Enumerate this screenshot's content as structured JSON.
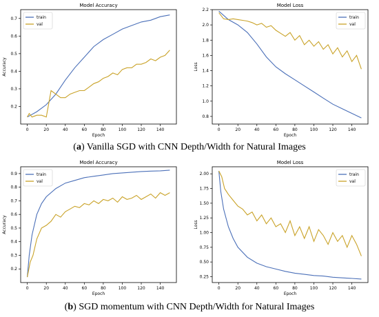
{
  "captions": [
    {
      "letter": "a",
      "text": " Vanilla SGD with CNN Depth/Width for Natural Images"
    },
    {
      "letter": "b",
      "text": " SGD momentum with CNN Depth/Width for Natural Images"
    }
  ],
  "colors": {
    "train": "#4a6fb8",
    "val": "#c9a227"
  },
  "chart_data": [
    {
      "type": "line",
      "title": "Model Accuracy",
      "xlabel": "Epoch",
      "ylabel": "Accuracy",
      "xlim": [
        -7,
        157
      ],
      "ylim": [
        0.1,
        0.75
      ],
      "xticks": [
        0,
        20,
        40,
        60,
        80,
        100,
        120,
        140
      ],
      "yticks": [
        0.2,
        0.3,
        0.4,
        0.5,
        0.6,
        0.7
      ],
      "legend": "top-left",
      "series": [
        {
          "name": "train",
          "x": [
            0,
            10,
            20,
            30,
            40,
            50,
            60,
            70,
            80,
            90,
            100,
            110,
            120,
            130,
            140,
            150
          ],
          "y": [
            0.14,
            0.17,
            0.21,
            0.27,
            0.35,
            0.42,
            0.48,
            0.54,
            0.58,
            0.61,
            0.64,
            0.66,
            0.68,
            0.69,
            0.71,
            0.72
          ]
        },
        {
          "name": "val",
          "x": [
            0,
            2,
            5,
            10,
            15,
            20,
            25,
            30,
            35,
            40,
            45,
            50,
            55,
            60,
            65,
            70,
            75,
            80,
            85,
            90,
            95,
            100,
            105,
            110,
            115,
            120,
            125,
            130,
            135,
            140,
            145,
            150
          ],
          "y": [
            0.14,
            0.16,
            0.14,
            0.15,
            0.15,
            0.14,
            0.29,
            0.27,
            0.25,
            0.25,
            0.27,
            0.28,
            0.29,
            0.29,
            0.31,
            0.33,
            0.34,
            0.36,
            0.37,
            0.39,
            0.38,
            0.41,
            0.42,
            0.42,
            0.44,
            0.44,
            0.45,
            0.47,
            0.46,
            0.48,
            0.49,
            0.52
          ]
        }
      ]
    },
    {
      "type": "line",
      "title": "Model Loss",
      "xlabel": "Epoch",
      "ylabel": "Loss",
      "xlim": [
        -7,
        157
      ],
      "ylim": [
        0.7,
        2.2
      ],
      "xticks": [
        0,
        20,
        40,
        60,
        80,
        100,
        120,
        140
      ],
      "yticks": [
        0.8,
        1.0,
        1.2,
        1.4,
        1.6,
        1.8,
        2.0,
        2.2
      ],
      "legend": "top-right",
      "series": [
        {
          "name": "train",
          "x": [
            0,
            10,
            20,
            30,
            40,
            50,
            60,
            70,
            80,
            90,
            100,
            110,
            120,
            130,
            140,
            150
          ],
          "y": [
            2.18,
            2.07,
            2.0,
            1.9,
            1.75,
            1.58,
            1.45,
            1.36,
            1.28,
            1.2,
            1.12,
            1.04,
            0.96,
            0.9,
            0.84,
            0.78
          ]
        },
        {
          "name": "val",
          "x": [
            0,
            5,
            10,
            15,
            20,
            25,
            30,
            35,
            40,
            45,
            50,
            55,
            60,
            65,
            70,
            75,
            80,
            85,
            90,
            95,
            100,
            105,
            110,
            115,
            120,
            125,
            130,
            135,
            140,
            145,
            150
          ],
          "y": [
            2.16,
            2.08,
            2.07,
            2.08,
            2.07,
            2.06,
            2.05,
            2.03,
            2.0,
            2.02,
            1.97,
            1.99,
            1.93,
            1.89,
            1.85,
            1.9,
            1.8,
            1.86,
            1.74,
            1.8,
            1.72,
            1.78,
            1.68,
            1.74,
            1.62,
            1.7,
            1.58,
            1.66,
            1.52,
            1.6,
            1.42
          ]
        }
      ]
    },
    {
      "type": "line",
      "title": "Model Accuracy",
      "xlabel": "Epoch",
      "ylabel": "Accuracy",
      "xlim": [
        -7,
        157
      ],
      "ylim": [
        0.1,
        0.95
      ],
      "xticks": [
        0,
        20,
        40,
        60,
        80,
        100,
        120,
        140
      ],
      "yticks": [
        0.2,
        0.3,
        0.4,
        0.5,
        0.6,
        0.7,
        0.8,
        0.9
      ],
      "legend": "top-left",
      "series": [
        {
          "name": "train",
          "x": [
            0,
            2,
            5,
            10,
            15,
            20,
            30,
            40,
            50,
            60,
            70,
            80,
            90,
            100,
            110,
            120,
            130,
            140,
            150
          ],
          "y": [
            0.14,
            0.3,
            0.45,
            0.6,
            0.68,
            0.73,
            0.79,
            0.83,
            0.85,
            0.87,
            0.88,
            0.89,
            0.9,
            0.905,
            0.91,
            0.915,
            0.918,
            0.92,
            0.925
          ]
        },
        {
          "name": "val",
          "x": [
            0,
            3,
            6,
            10,
            15,
            20,
            25,
            30,
            35,
            40,
            45,
            50,
            55,
            60,
            65,
            70,
            75,
            80,
            85,
            90,
            95,
            100,
            105,
            110,
            115,
            120,
            125,
            130,
            135,
            140,
            145,
            150
          ],
          "y": [
            0.14,
            0.25,
            0.3,
            0.42,
            0.5,
            0.52,
            0.55,
            0.6,
            0.58,
            0.62,
            0.64,
            0.66,
            0.65,
            0.68,
            0.67,
            0.7,
            0.68,
            0.71,
            0.7,
            0.72,
            0.69,
            0.73,
            0.71,
            0.72,
            0.74,
            0.71,
            0.73,
            0.75,
            0.72,
            0.76,
            0.74,
            0.76
          ]
        }
      ]
    },
    {
      "type": "line",
      "title": "Model Loss",
      "xlabel": "Epoch",
      "ylabel": "Loss",
      "xlim": [
        -7,
        157
      ],
      "ylim": [
        0.15,
        2.12
      ],
      "xticks": [
        0,
        20,
        40,
        60,
        80,
        100,
        120,
        140
      ],
      "yticks": [
        0.25,
        0.5,
        0.75,
        1.0,
        1.25,
        1.5,
        1.75,
        2.0
      ],
      "legend": "top-right",
      "series": [
        {
          "name": "train",
          "x": [
            0,
            2,
            5,
            10,
            15,
            20,
            30,
            40,
            50,
            60,
            70,
            80,
            90,
            100,
            110,
            120,
            130,
            140,
            150
          ],
          "y": [
            2.05,
            1.7,
            1.4,
            1.1,
            0.9,
            0.75,
            0.58,
            0.48,
            0.42,
            0.38,
            0.34,
            0.31,
            0.29,
            0.27,
            0.26,
            0.24,
            0.23,
            0.22,
            0.21
          ]
        },
        {
          "name": "val",
          "x": [
            0,
            3,
            6,
            10,
            15,
            20,
            25,
            30,
            35,
            40,
            45,
            50,
            55,
            60,
            65,
            70,
            75,
            80,
            85,
            90,
            95,
            100,
            105,
            110,
            115,
            120,
            125,
            130,
            135,
            140,
            145,
            150
          ],
          "y": [
            2.05,
            1.95,
            1.75,
            1.65,
            1.55,
            1.45,
            1.4,
            1.3,
            1.35,
            1.2,
            1.3,
            1.15,
            1.25,
            1.1,
            1.15,
            1.0,
            1.2,
            0.95,
            1.1,
            0.9,
            1.1,
            0.85,
            1.05,
            0.95,
            0.8,
            1.0,
            0.85,
            0.95,
            0.75,
            0.95,
            0.8,
            0.6
          ]
        }
      ]
    }
  ]
}
